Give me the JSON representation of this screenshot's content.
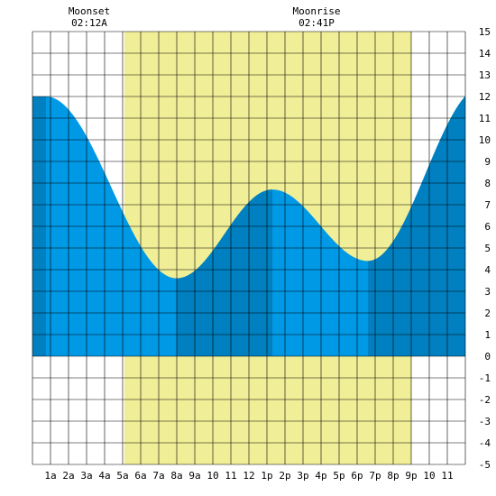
{
  "header": {
    "moonset": {
      "label": "Moonset",
      "time": "02:12A"
    },
    "moonrise": {
      "label": "Moonrise",
      "time": "02:41P"
    }
  },
  "colors": {
    "daylight": "#f0ee96",
    "tide_light": "#0099e6",
    "tide_dark": "#0080c0",
    "grid": "#000000",
    "background": "#ffffff"
  },
  "chart_data": {
    "type": "area",
    "title": "",
    "xlabel": "",
    "ylabel": "",
    "x_unit": "hour of day",
    "xlim": [
      0,
      24
    ],
    "ylim": [
      -5,
      15
    ],
    "x_tick_labels": [
      "1a",
      "2a",
      "3a",
      "4a",
      "5a",
      "6a",
      "7a",
      "8a",
      "9a",
      "10",
      "11",
      "12",
      "1p",
      "2p",
      "3p",
      "4p",
      "5p",
      "6p",
      "7p",
      "8p",
      "9p",
      "10",
      "11"
    ],
    "y_ticks": [
      -5,
      -4,
      -3,
      -2,
      -1,
      0,
      1,
      2,
      3,
      4,
      5,
      6,
      7,
      8,
      9,
      10,
      11,
      12,
      13,
      14,
      15
    ],
    "daylight_hours": [
      5.1,
      21.0
    ],
    "shade_bands_hours": [
      [
        0,
        0.75
      ],
      [
        8.0,
        13.3
      ],
      [
        18.6,
        24
      ]
    ],
    "tide_extremes": [
      {
        "hour": 0.75,
        "height": 12.0,
        "type": "high"
      },
      {
        "hour": 8.0,
        "height": 3.6,
        "type": "low"
      },
      {
        "hour": 13.3,
        "height": 7.7,
        "type": "high"
      },
      {
        "hour": 18.6,
        "height": 4.4,
        "type": "low"
      },
      {
        "hour": 25.0,
        "height": 12.5,
        "type": "high"
      }
    ],
    "moon_events": [
      {
        "name": "Moonset",
        "time": "02:12A",
        "hour": 2.2
      },
      {
        "name": "Moonrise",
        "time": "02:41P",
        "hour": 14.68
      }
    ],
    "grid": true
  }
}
